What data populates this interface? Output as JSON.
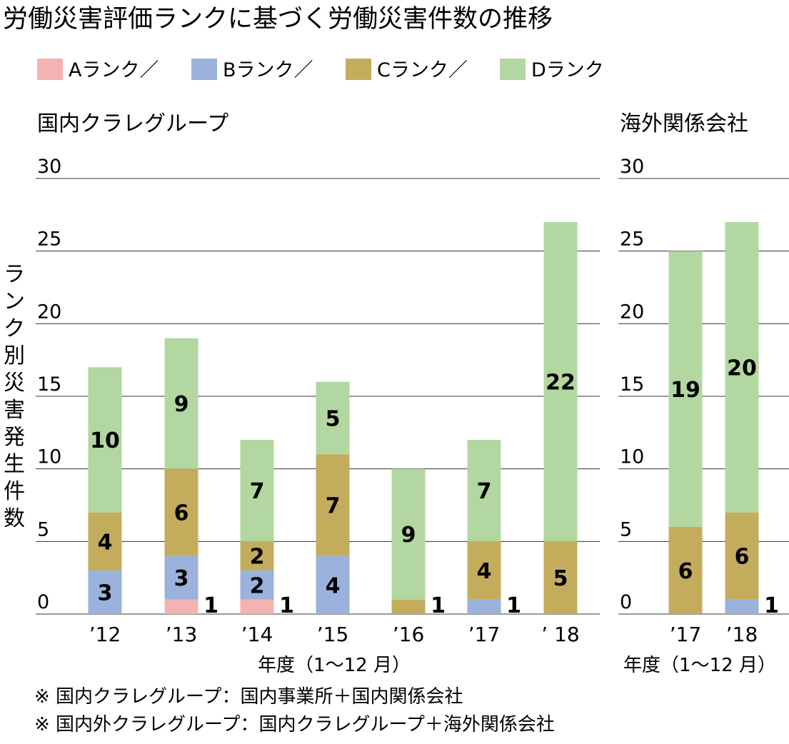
{
  "title": "労働災害評価ランクに基づく労働災害件数の推移",
  "legend": [
    {
      "label": "Aランク／",
      "color": "#f4b3b3"
    },
    {
      "label": "Bランク／",
      "color": "#9bb2dc"
    },
    {
      "label": "Cランク／",
      "color": "#c3ad5c"
    },
    {
      "label": "Dランク",
      "color": "#b3d7a0"
    }
  ],
  "ylabel": "ランク別災害発生件数",
  "notes": [
    "※ 国内クラレグループ：国内事業所＋国内関係会社",
    "※ 国内外クラレグループ：国内クラレグループ＋海外関係会社"
  ],
  "chart_data": [
    {
      "type": "bar",
      "stacked": true,
      "title": "国内クラレグループ",
      "xlabel": "年度（1～12 月）",
      "ylabel": "ランク別災害発生件数",
      "ylim": [
        0,
        30
      ],
      "yticks": [
        0,
        5,
        10,
        15,
        20,
        25,
        30
      ],
      "categories": [
        "’12",
        "’13",
        "’14",
        "’15",
        "’16",
        "’17",
        "’ 18"
      ],
      "series": [
        {
          "name": "Aランク",
          "color": "#f4b3b3",
          "values": [
            0,
            1,
            1,
            0,
            0,
            0,
            0
          ]
        },
        {
          "name": "Bランク",
          "color": "#9bb2dc",
          "values": [
            3,
            3,
            2,
            4,
            0,
            1,
            0
          ]
        },
        {
          "name": "Cランク",
          "color": "#c3ad5c",
          "values": [
            4,
            6,
            2,
            7,
            1,
            4,
            5
          ]
        },
        {
          "name": "Dランク",
          "color": "#b3d7a0",
          "values": [
            10,
            9,
            7,
            5,
            9,
            7,
            22
          ]
        }
      ]
    },
    {
      "type": "bar",
      "stacked": true,
      "title": "海外関係会社",
      "xlabel": "年度（1～12 月）",
      "ylim": [
        0,
        30
      ],
      "yticks": [
        0,
        5,
        10,
        15,
        20,
        25,
        30
      ],
      "categories": [
        "’17",
        "’18"
      ],
      "series": [
        {
          "name": "Aランク",
          "color": "#f4b3b3",
          "values": [
            0,
            0
          ]
        },
        {
          "name": "Bランク",
          "color": "#9bb2dc",
          "values": [
            0,
            1
          ]
        },
        {
          "name": "Cランク",
          "color": "#c3ad5c",
          "values": [
            6,
            6
          ]
        },
        {
          "name": "Dランク",
          "color": "#b3d7a0",
          "values": [
            19,
            20
          ]
        }
      ]
    }
  ]
}
